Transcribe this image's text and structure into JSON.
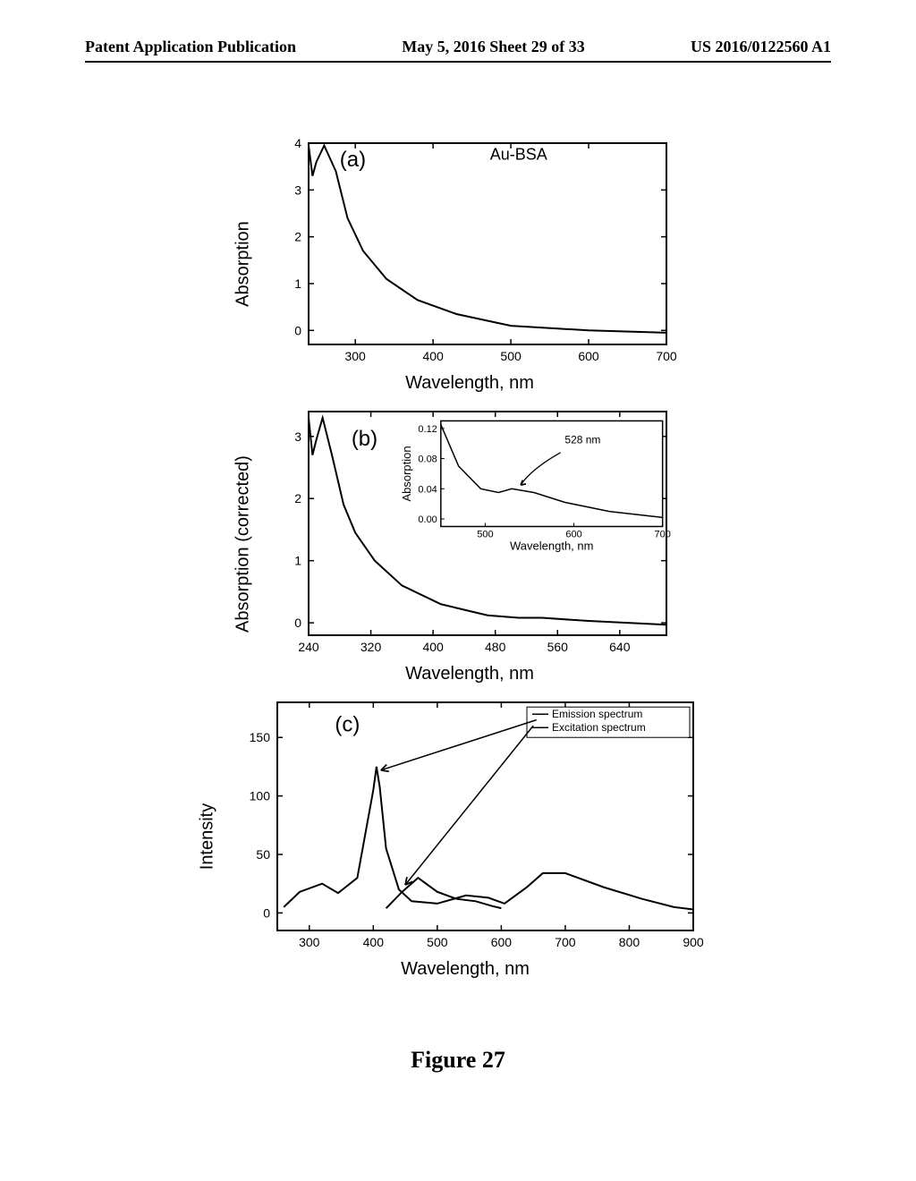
{
  "header": {
    "left": "Patent Application Publication",
    "center": "May 5, 2016  Sheet 29 of 33",
    "right": "US 2016/0122560 A1"
  },
  "figure_caption": "Figure 27",
  "chart_a": {
    "type": "line",
    "panel_label": "(a)",
    "panel_fontsize": 24,
    "title_annotation": "Au-BSA",
    "xlabel": "Wavelength, nm",
    "ylabel": "Absorption",
    "label_fontsize": 20,
    "tick_fontsize": 14,
    "xlim": [
      240,
      700
    ],
    "xtick_start": 300,
    "xtick_step": 100,
    "ylim": [
      -0.3,
      4
    ],
    "ytick_step": 1,
    "line_color": "#000000",
    "line_width": 2,
    "background_color": "#ffffff",
    "border_color": "#000000",
    "x": [
      240,
      245,
      250,
      260,
      275,
      290,
      310,
      340,
      380,
      430,
      500,
      600,
      700
    ],
    "y": [
      3.95,
      3.3,
      3.6,
      3.95,
      3.4,
      2.4,
      1.7,
      1.1,
      0.65,
      0.35,
      0.1,
      0.0,
      -0.05
    ]
  },
  "chart_b": {
    "type": "line",
    "panel_label": "(b)",
    "panel_fontsize": 24,
    "xlabel": "Wavelength, nm",
    "ylabel": "Absorption (corrected)",
    "label_fontsize": 20,
    "tick_fontsize": 14,
    "xlim": [
      240,
      700
    ],
    "xtick_step": 80,
    "ylim": [
      -0.2,
      3.4
    ],
    "ytick_step": 1,
    "line_color": "#000000",
    "line_width": 2,
    "background_color": "#ffffff",
    "border_color": "#000000",
    "x": [
      240,
      245,
      250,
      258,
      270,
      285,
      300,
      325,
      360,
      410,
      470,
      510,
      540,
      600,
      700
    ],
    "y": [
      3.3,
      2.7,
      2.95,
      3.3,
      2.7,
      1.9,
      1.45,
      1.0,
      0.6,
      0.3,
      0.12,
      0.08,
      0.08,
      0.03,
      -0.03
    ],
    "inset": {
      "xlabel": "Wavelength, nm",
      "ylabel": "Absorption",
      "annotation": "528 nm",
      "xlim": [
        450,
        700
      ],
      "xtick_step": 100,
      "xtick_start": 500,
      "ylim": [
        -0.01,
        0.13
      ],
      "ytick_step": 0.04,
      "tick_fontsize": 11,
      "label_fontsize": 13,
      "arrow_color": "#000000",
      "x": [
        450,
        470,
        495,
        515,
        530,
        555,
        590,
        640,
        700
      ],
      "y": [
        0.125,
        0.07,
        0.04,
        0.035,
        0.04,
        0.035,
        0.022,
        0.01,
        0.002
      ]
    }
  },
  "chart_c": {
    "type": "line",
    "panel_label": "(c)",
    "panel_fontsize": 24,
    "xlabel": "Wavelength, nm",
    "ylabel": "Intensity",
    "label_fontsize": 20,
    "tick_fontsize": 14,
    "xlim": [
      250,
      900
    ],
    "xtick_start": 300,
    "xtick_step": 100,
    "ylim": [
      -15,
      180
    ],
    "ytick_step": 50,
    "line_color": "#000000",
    "line_width": 2,
    "background_color": "#ffffff",
    "border_color": "#000000",
    "legend": {
      "items": [
        "Emission spectrum",
        "Excitation spectrum"
      ],
      "fontsize": 12,
      "position": "top-right"
    },
    "series": [
      {
        "name": "excitation",
        "x": [
          260,
          285,
          320,
          345,
          375,
          400,
          405,
          410,
          420,
          440,
          460,
          500,
          545,
          580,
          605,
          640,
          665,
          700,
          760,
          820,
          870,
          900
        ],
        "y": [
          5,
          18,
          25,
          17,
          30,
          105,
          125,
          108,
          55,
          20,
          10,
          8,
          15,
          13,
          8,
          22,
          34,
          34,
          22,
          12,
          5,
          3
        ]
      },
      {
        "name": "emission",
        "x": [
          420,
          445,
          470,
          500,
          530,
          560,
          585,
          600
        ],
        "y": [
          4,
          18,
          30,
          18,
          12,
          10,
          6,
          4
        ]
      }
    ],
    "arrows": [
      {
        "from_x": 655,
        "from_y": 165,
        "to_x": 412,
        "to_y": 122
      },
      {
        "from_x": 650,
        "from_y": 160,
        "to_x": 450,
        "to_y": 24
      }
    ]
  }
}
